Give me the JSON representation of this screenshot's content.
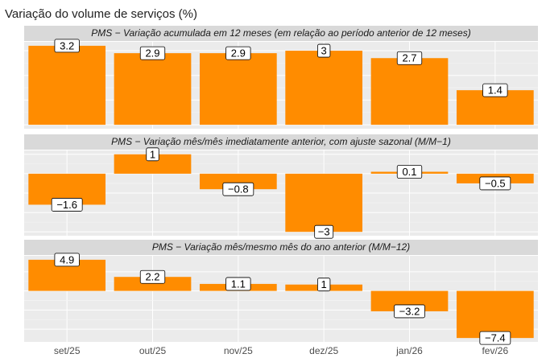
{
  "chart_data": {
    "type": "bar",
    "title": "Variação do volume de serviços (%)",
    "categories": [
      "set/25",
      "out/25",
      "nov/25",
      "dez/25",
      "jan/26",
      "fev/26"
    ],
    "color": "#ff8c00",
    "grid": true,
    "panels": [
      {
        "title": "PMS − Variação acumulada em 12 meses (em relação ao período anterior de 12 meses)",
        "values": [
          3.2,
          2.9,
          2.9,
          3,
          2.7,
          1.4
        ],
        "ylim": [
          -0.16,
          3.36
        ],
        "yticks": [
          0,
          1,
          2,
          3
        ]
      },
      {
        "title": "PMS − Variação mês/mês imediatamente anterior, com ajuste sazonal (M/M−1)",
        "values": [
          -1.6,
          1,
          -0.8,
          -3,
          0.1,
          -0.5
        ],
        "value_labels": [
          "−1.6",
          "1",
          "−0.8",
          "−3",
          "0.1",
          "−0.5"
        ],
        "ylim": [
          -3.2,
          1.2
        ],
        "yticks": [
          -3,
          -2,
          -1,
          0,
          1
        ]
      },
      {
        "title": "PMS − Variação mês/mesmo mês do ano anterior (M/M−12)",
        "values": [
          4.9,
          2.2,
          1.1,
          1,
          -3.2,
          -7.4
        ],
        "value_labels": [
          "4.9",
          "2.2",
          "1.1",
          "1",
          "−3.2",
          "−7.4"
        ],
        "ylim": [
          -8.015,
          5.515
        ],
        "yticks": [
          -6,
          -3,
          0,
          3
        ]
      }
    ]
  }
}
